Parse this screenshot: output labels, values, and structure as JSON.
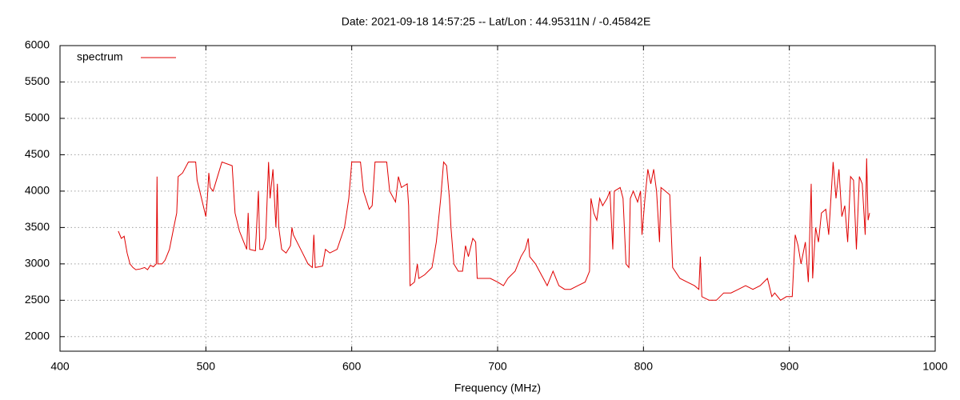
{
  "chart_data": {
    "type": "line",
    "title": "Date: 2021-09-18 14:57:25  --  Lat/Lon : 44.95311N / -0.45842E",
    "x_label": "Frequency (MHz)",
    "xlim": [
      400,
      1000
    ],
    "xticks": [
      400,
      500,
      600,
      700,
      800,
      900,
      1000
    ],
    "ylim": [
      1800,
      6000
    ],
    "yticks": [
      2000,
      2500,
      3000,
      3500,
      4000,
      4500,
      5000,
      5500,
      6000
    ],
    "grid": true,
    "legend": "top-left",
    "x": [
      440,
      442,
      444,
      446,
      448,
      450,
      452,
      455,
      458,
      460,
      462,
      464,
      466,
      466.5,
      467,
      470,
      472,
      475,
      478,
      480,
      481,
      484,
      488,
      493,
      494,
      497,
      500,
      501,
      502,
      503,
      505,
      508,
      511,
      518,
      520,
      523,
      526,
      528,
      529,
      530,
      534,
      536,
      537,
      539,
      541,
      543,
      544,
      546,
      548,
      549,
      550,
      552,
      555,
      558,
      559,
      560,
      565,
      570,
      573,
      574,
      575,
      580,
      582,
      585,
      590,
      595,
      598,
      600,
      606,
      608,
      612,
      614,
      616,
      624,
      626,
      630,
      632,
      634,
      638,
      639,
      640,
      643,
      645,
      646,
      650,
      655,
      658,
      661,
      663,
      665,
      667,
      668,
      670,
      673,
      676,
      678,
      680,
      683,
      685,
      686,
      690,
      695,
      700,
      704,
      707,
      712,
      716,
      719,
      721,
      722,
      726,
      730,
      734,
      738,
      742,
      746,
      750,
      755,
      760,
      763,
      764,
      766,
      768,
      770,
      772,
      775,
      777,
      779,
      780,
      784,
      786,
      788,
      790,
      791,
      793,
      796,
      798,
      799,
      801,
      803,
      805,
      807,
      809,
      811,
      812,
      815,
      818,
      820,
      825,
      830,
      835,
      838,
      839,
      840,
      845,
      850,
      855,
      860,
      865,
      870,
      875,
      880,
      885,
      888,
      890,
      894,
      898,
      902,
      904,
      906,
      908,
      911,
      913,
      915,
      916,
      918,
      920,
      922,
      925,
      927,
      930,
      932,
      934,
      936,
      938,
      940,
      942,
      944,
      946,
      948,
      950,
      952,
      953,
      954,
      955
    ],
    "series": [
      {
        "name": "spectrum",
        "color": "#e00000",
        "values": [
          3450,
          3350,
          3380,
          3150,
          3000,
          2950,
          2920,
          2930,
          2950,
          2920,
          2980,
          2960,
          3000,
          4200,
          3000,
          3000,
          3050,
          3200,
          3500,
          3700,
          4200,
          4250,
          4400,
          4400,
          4150,
          3900,
          3650,
          3900,
          4250,
          4050,
          4000,
          4200,
          4400,
          4350,
          3700,
          3450,
          3300,
          3200,
          3700,
          3200,
          3180,
          4000,
          3200,
          3200,
          3350,
          4400,
          3900,
          4300,
          3500,
          4100,
          3500,
          3200,
          3150,
          3250,
          3500,
          3400,
          3200,
          3000,
          2950,
          3400,
          2950,
          2970,
          3200,
          3150,
          3200,
          3500,
          3900,
          4400,
          4400,
          4000,
          3750,
          3800,
          4400,
          4400,
          4000,
          3850,
          4200,
          4050,
          4100,
          3800,
          2700,
          2750,
          3000,
          2800,
          2850,
          2950,
          3300,
          3900,
          4400,
          4350,
          3900,
          3500,
          3000,
          2900,
          2900,
          3250,
          3100,
          3350,
          3300,
          2800,
          2800,
          2800,
          2750,
          2700,
          2800,
          2900,
          3100,
          3200,
          3350,
          3100,
          3000,
          2850,
          2700,
          2900,
          2700,
          2650,
          2650,
          2700,
          2750,
          2900,
          3900,
          3700,
          3600,
          3900,
          3800,
          3900,
          4000,
          3200,
          4000,
          4050,
          3900,
          3000,
          2950,
          3900,
          4000,
          3850,
          4000,
          3400,
          3900,
          4300,
          4100,
          4300,
          4000,
          3300,
          4050,
          4000,
          3950,
          2950,
          2800,
          2750,
          2700,
          2650,
          3100,
          2550,
          2500,
          2500,
          2600,
          2600,
          2650,
          2700,
          2650,
          2700,
          2800,
          2550,
          2600,
          2500,
          2550,
          2550,
          3400,
          3250,
          3000,
          3300,
          2750,
          4100,
          2800,
          3500,
          3300,
          3700,
          3750,
          3400,
          4400,
          3900,
          4300,
          3650,
          3800,
          3300,
          4200,
          4150,
          3200,
          4200,
          4100,
          3400,
          4450,
          3600,
          3700
        ]
      }
    ]
  }
}
